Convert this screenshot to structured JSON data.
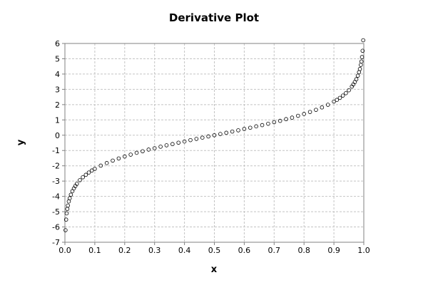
{
  "chart_data": {
    "type": "scatter",
    "title": "Derivative Plot",
    "xlabel": "x",
    "ylabel": "y",
    "xlim": [
      0.0,
      1.0
    ],
    "ylim": [
      -7,
      6
    ],
    "xticks": [
      0.0,
      0.1,
      0.2,
      0.3,
      0.4,
      0.5,
      0.6,
      0.7,
      0.8,
      0.9,
      1.0
    ],
    "xtick_labels": [
      "0.0",
      "0.1",
      "0.2",
      "0.3",
      "0.4",
      "0.5",
      "0.6",
      "0.7",
      "0.8",
      "0.9",
      "1.0"
    ],
    "yticks": [
      -7,
      -6,
      -5,
      -4,
      -3,
      -2,
      -1,
      0,
      1,
      2,
      3,
      4,
      5,
      6
    ],
    "ytick_labels": [
      "-7",
      "-6",
      "-5",
      "-4",
      "-3",
      "-2",
      "-1",
      "0",
      "1",
      "2",
      "3",
      "4",
      "5",
      "6"
    ],
    "grid": true,
    "marker": "open-circle",
    "marker_color": "#000000",
    "series": [
      {
        "x": [
          0.002,
          0.004,
          0.006,
          0.008,
          0.01,
          0.013,
          0.016,
          0.02,
          0.025,
          0.03,
          0.035,
          0.04,
          0.05,
          0.06,
          0.07,
          0.08,
          0.09,
          0.1,
          0.12,
          0.14,
          0.16,
          0.18,
          0.2,
          0.22,
          0.24,
          0.26,
          0.28,
          0.3,
          0.32,
          0.34,
          0.36,
          0.38,
          0.4,
          0.42,
          0.44,
          0.46,
          0.48,
          0.5,
          0.52,
          0.54,
          0.56,
          0.58,
          0.6,
          0.62,
          0.64,
          0.66,
          0.68,
          0.7,
          0.72,
          0.74,
          0.76,
          0.78,
          0.8,
          0.82,
          0.84,
          0.86,
          0.88,
          0.9,
          0.91,
          0.92,
          0.93,
          0.94,
          0.95,
          0.96,
          0.965,
          0.97,
          0.975,
          0.98,
          0.984,
          0.987,
          0.99,
          0.992,
          0.994,
          0.996,
          0.998
        ],
        "y": [
          -6.21,
          -5.52,
          -5.11,
          -4.82,
          -4.6,
          -4.33,
          -4.12,
          -3.89,
          -3.66,
          -3.48,
          -3.32,
          -3.18,
          -2.94,
          -2.75,
          -2.59,
          -2.44,
          -2.31,
          -2.2,
          -1.99,
          -1.82,
          -1.66,
          -1.52,
          -1.39,
          -1.27,
          -1.15,
          -1.05,
          -0.94,
          -0.85,
          -0.75,
          -0.66,
          -0.58,
          -0.49,
          -0.41,
          -0.32,
          -0.24,
          -0.16,
          -0.08,
          0.0,
          0.08,
          0.16,
          0.24,
          0.32,
          0.41,
          0.49,
          0.58,
          0.66,
          0.75,
          0.85,
          0.94,
          1.05,
          1.15,
          1.27,
          1.39,
          1.52,
          1.66,
          1.82,
          1.99,
          2.2,
          2.31,
          2.44,
          2.59,
          2.75,
          2.94,
          3.18,
          3.32,
          3.48,
          3.66,
          3.89,
          4.12,
          4.33,
          4.6,
          4.82,
          5.11,
          5.52,
          6.21
        ]
      }
    ]
  }
}
